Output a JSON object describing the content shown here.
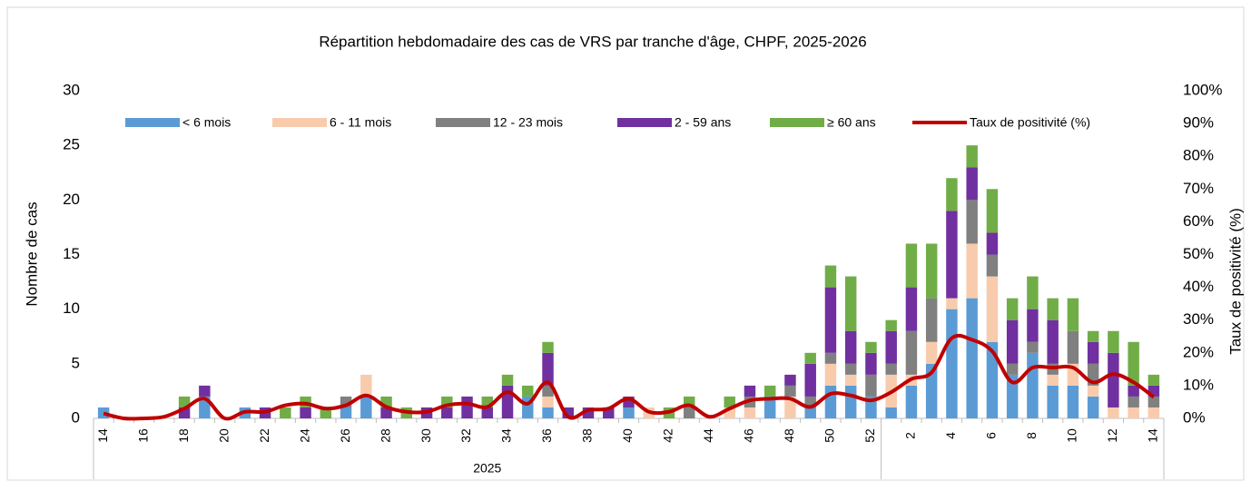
{
  "chart_data": {
    "type": "bar",
    "stacked": true,
    "title": "Répartition hebdomadaire des cas de VRS par tranche d'âge, CHPF, 2025-2026",
    "ylabel": "Nombre de cas",
    "y2label": "Taux de positivité (%)",
    "x_group_label": "2025",
    "categories": [
      "14",
      null,
      "16",
      null,
      "18",
      null,
      "20",
      null,
      "22",
      null,
      "24",
      null,
      "26",
      null,
      "28",
      null,
      "30",
      null,
      "32",
      null,
      "34",
      null,
      "36",
      null,
      "38",
      null,
      "40",
      null,
      "42",
      null,
      "44",
      null,
      "46",
      null,
      "48",
      null,
      "50",
      null,
      "52",
      null,
      "2",
      null,
      "4",
      null,
      "6",
      null,
      "8",
      null,
      "10",
      null,
      "12",
      null,
      "14"
    ],
    "ylim": [
      0,
      30
    ],
    "yticks": [
      0,
      5,
      10,
      15,
      20,
      25,
      30
    ],
    "y2lim": [
      0,
      100
    ],
    "y2ticks": [
      {
        "value": 0,
        "label": "0%"
      },
      {
        "value": 10,
        "label": "10%"
      },
      {
        "value": 20,
        "label": "20%"
      },
      {
        "value": 30,
        "label": "30%"
      },
      {
        "value": 40,
        "label": "40%"
      },
      {
        "value": 50,
        "label": "50%"
      },
      {
        "value": 60,
        "label": "60%"
      },
      {
        "value": 70,
        "label": "70%"
      },
      {
        "value": 80,
        "label": "80%"
      },
      {
        "value": 90,
        "label": "90%"
      },
      {
        "value": 100,
        "label": "100%"
      }
    ],
    "legend": "top",
    "series": [
      {
        "name": "< 6 mois",
        "color": "#5b9bd5",
        "values": [
          1,
          0,
          0,
          0,
          0,
          2,
          0,
          1,
          0,
          0,
          0,
          0,
          1,
          2,
          0,
          0,
          0,
          0,
          0,
          0,
          0,
          2,
          1,
          0,
          0,
          0,
          1,
          0,
          0,
          0,
          0,
          0,
          0,
          2,
          0,
          1,
          3,
          3,
          2,
          1,
          3,
          5,
          10,
          11,
          7,
          4,
          6,
          3,
          3,
          2,
          0,
          0,
          0
        ]
      },
      {
        "name": "6 - 11 mois",
        "color": "#f8cbad",
        "values": [
          0,
          0,
          0,
          0,
          0,
          0,
          0,
          0,
          0,
          0,
          0,
          0,
          0,
          2,
          0,
          0,
          0,
          0,
          0,
          0,
          0,
          0,
          1,
          0,
          0,
          0,
          0,
          1,
          0,
          0,
          0,
          1,
          1,
          0,
          2,
          0,
          2,
          1,
          0,
          3,
          1,
          2,
          1,
          5,
          6,
          0,
          0,
          1,
          2,
          1,
          1,
          1,
          1
        ]
      },
      {
        "name": "12 - 23 mois",
        "color": "#808080",
        "values": [
          0,
          0,
          0,
          0,
          0,
          0,
          0,
          0,
          0,
          0,
          0,
          0,
          1,
          0,
          0,
          0,
          0,
          0,
          0,
          0,
          0,
          0,
          1,
          0,
          0,
          0,
          0,
          0,
          0,
          1,
          0,
          0,
          1,
          0,
          1,
          1,
          1,
          1,
          2,
          1,
          4,
          4,
          0,
          4,
          2,
          1,
          1,
          1,
          3,
          2,
          0,
          1,
          1
        ]
      },
      {
        "name": "2 - 59 ans",
        "color": "#7030a0",
        "values": [
          0,
          0,
          0,
          0,
          1,
          1,
          0,
          0,
          1,
          0,
          1,
          0,
          0,
          0,
          1,
          0,
          1,
          1,
          2,
          1,
          3,
          0,
          3,
          1,
          1,
          1,
          1,
          0,
          0,
          0,
          0,
          0,
          1,
          0,
          1,
          3,
          6,
          3,
          2,
          3,
          4,
          0,
          8,
          3,
          2,
          4,
          3,
          4,
          0,
          2,
          5,
          1,
          1
        ]
      },
      {
        "name": "≥ 60 ans",
        "color": "#70ad47",
        "values": [
          0,
          0,
          0,
          0,
          1,
          0,
          0,
          0,
          0,
          1,
          1,
          1,
          0,
          0,
          1,
          1,
          0,
          1,
          0,
          1,
          1,
          1,
          1,
          0,
          0,
          0,
          0,
          0,
          1,
          1,
          0,
          1,
          0,
          1,
          0,
          1,
          2,
          5,
          1,
          1,
          4,
          5,
          3,
          2,
          4,
          2,
          3,
          2,
          3,
          1,
          2,
          4,
          1
        ]
      },
      {
        "name": "Taux de positivité (%)",
        "type": "line",
        "axis": "y2",
        "color": "#c00000",
        "values": [
          1.5,
          0,
          0,
          0.5,
          3,
          6,
          0,
          2,
          2,
          4,
          4.5,
          3,
          4,
          7,
          3.5,
          2,
          2,
          4,
          4.5,
          3.5,
          8,
          4.5,
          11,
          0.5,
          2.5,
          3,
          6,
          2,
          2,
          4,
          0.5,
          3,
          5.5,
          6,
          6,
          3.5,
          7.5,
          7,
          5.5,
          8,
          12,
          14,
          24.5,
          24,
          20.5,
          11,
          15.5,
          15.5,
          15.5,
          11,
          13.5,
          11,
          6.5
        ]
      }
    ]
  }
}
